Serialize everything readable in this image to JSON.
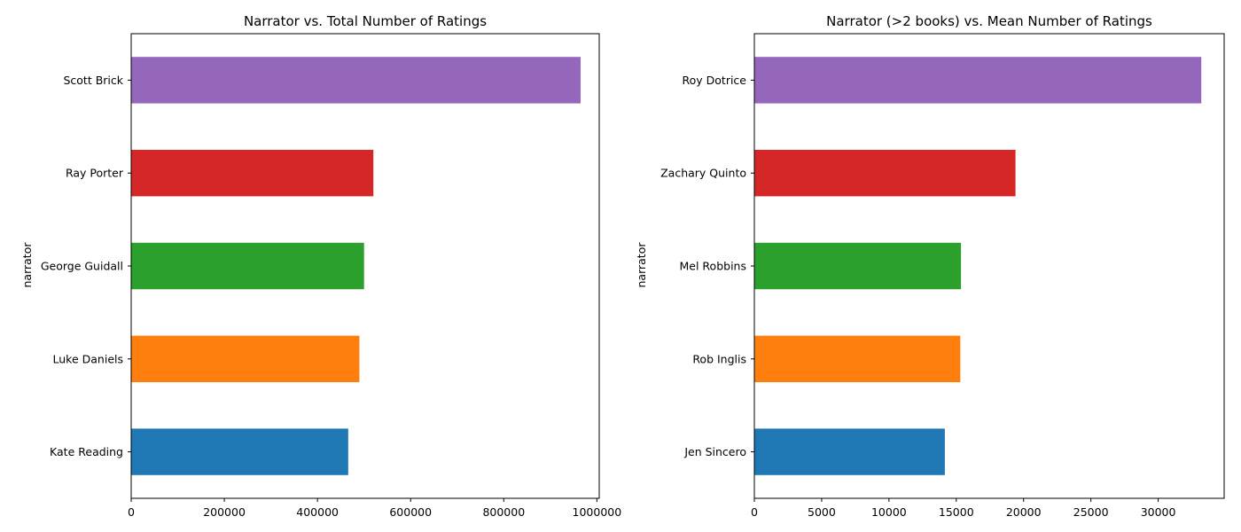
{
  "chart_data": [
    {
      "type": "bar",
      "orientation": "horizontal",
      "title": "Narrator vs. Total Number of Ratings",
      "ylabel": "narrator",
      "xlabel": "",
      "categories": [
        "Kate Reading",
        "Luke Daniels",
        "George Guidall",
        "Ray Porter",
        "Scott Brick"
      ],
      "values": [
        466000,
        490000,
        500000,
        520000,
        965000
      ],
      "colors": [
        "#1f77b4",
        "#ff7f0e",
        "#2ca02c",
        "#d62728",
        "#9467bd"
      ],
      "xlim": [
        0,
        1005000
      ],
      "xticks": [
        0,
        200000,
        400000,
        600000,
        800000,
        1000000
      ],
      "xtick_labels": [
        "0",
        "200000",
        "400000",
        "600000",
        "800000",
        "1000000"
      ],
      "grid": false,
      "legend": "none"
    },
    {
      "type": "bar",
      "orientation": "horizontal",
      "title": "Narrator (>2 books) vs. Mean Number of Ratings",
      "ylabel": "narrator",
      "xlabel": "",
      "categories": [
        "Jen Sincero",
        "Rob Inglis",
        "Mel Robbins",
        "Zachary Quinto",
        "Roy Dotrice"
      ],
      "values": [
        14150,
        15300,
        15350,
        19400,
        33200
      ],
      "colors": [
        "#1f77b4",
        "#ff7f0e",
        "#2ca02c",
        "#d62728",
        "#9467bd"
      ],
      "xlim": [
        0,
        34900
      ],
      "xticks": [
        0,
        5000,
        10000,
        15000,
        20000,
        25000,
        30000
      ],
      "xtick_labels": [
        "0",
        "5000",
        "10000",
        "15000",
        "20000",
        "25000",
        "30000"
      ],
      "grid": false,
      "legend": "none"
    }
  ]
}
